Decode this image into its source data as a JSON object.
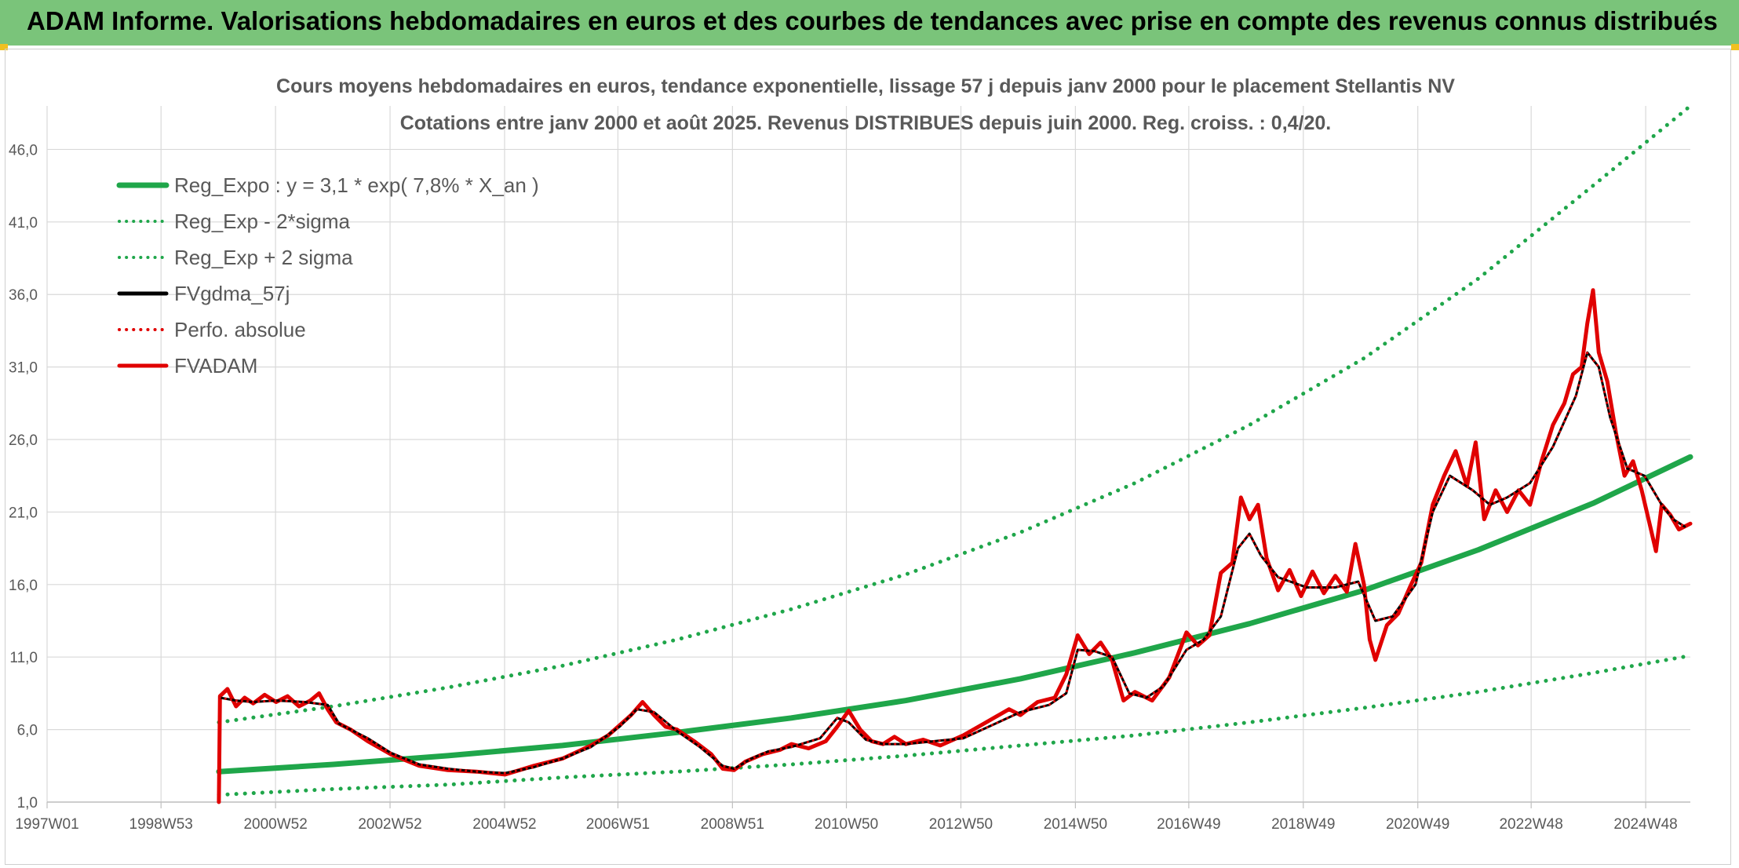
{
  "header": {
    "title": "ADAM Informe. Valorisations hebdomadaires en euros et des courbes de tendances avec prise en compte des revenus connus distribués"
  },
  "chart_data": {
    "type": "line",
    "title": "Cours moyens hebdomadaires en euros, tendance exponentielle, lissage 57 j depuis janv 2000 pour le placement Stellantis NV",
    "subtitle": "Cotations entre janv 2000 et août 2025. Revenus DISTRIBUES depuis juin 2000. Reg. croiss. : 0,4/20.",
    "xlabel": "",
    "ylabel": "",
    "x_range": [
      1997.0,
      2025.7
    ],
    "ylim": [
      1.0,
      49.0
    ],
    "y_ticks": [
      "1,0",
      "6,0",
      "11,0",
      "16,0",
      "21,0",
      "26,0",
      "31,0",
      "36,0",
      "41,0",
      "46,0"
    ],
    "y_tick_values": [
      1,
      6,
      11,
      16,
      21,
      26,
      31,
      36,
      41,
      46
    ],
    "x_ticks": [
      "1997W01",
      "1998W53",
      "2000W52",
      "2002W52",
      "2004W52",
      "2006W51",
      "2008W51",
      "2010W50",
      "2012W50",
      "2014W50",
      "2016W49",
      "2018W49",
      "2020W49",
      "2022W48",
      "2024W48"
    ],
    "x_tick_values": [
      1997.0,
      1998.99,
      2000.99,
      2002.99,
      2004.99,
      2006.97,
      2008.97,
      2010.96,
      2012.96,
      2014.96,
      2016.94,
      2018.94,
      2020.94,
      2022.92,
      2024.92
    ],
    "grid": true,
    "legend_position": "top-left",
    "series": [
      {
        "name": "Reg_Expo : y = 3,1 * exp( 7,8% *  X_an )",
        "style": "solid",
        "color": "#1fa64a",
        "x": [
          2000.0,
          2002.0,
          2004.0,
          2006.0,
          2008.0,
          2010.0,
          2012.0,
          2014.0,
          2016.0,
          2018.0,
          2020.0,
          2022.0,
          2024.0,
          2025.7
        ],
        "y": [
          3.1,
          3.6,
          4.2,
          4.9,
          5.8,
          6.8,
          8.0,
          9.5,
          11.3,
          13.3,
          15.6,
          18.4,
          21.6,
          24.8
        ]
      },
      {
        "name": "Reg_Exp - 2*sigma",
        "style": "dotted",
        "color": "#1fa64a",
        "x": [
          2000.0,
          2002.0,
          2004.0,
          2006.0,
          2008.0,
          2010.0,
          2012.0,
          2014.0,
          2016.0,
          2018.0,
          2020.0,
          2022.0,
          2024.0,
          2025.7
        ],
        "y": [
          1.5,
          1.9,
          2.2,
          2.7,
          3.1,
          3.6,
          4.2,
          4.9,
          5.6,
          6.5,
          7.5,
          8.6,
          9.9,
          11.1
        ]
      },
      {
        "name": "Reg_Exp + 2 sigma",
        "style": "dotted",
        "color": "#1fa64a",
        "x": [
          2000.0,
          2002.0,
          2004.0,
          2006.0,
          2008.0,
          2010.0,
          2012.0,
          2014.0,
          2016.0,
          2018.0,
          2020.0,
          2022.0,
          2024.0,
          2025.7
        ],
        "y": [
          6.5,
          7.6,
          8.9,
          10.4,
          12.2,
          14.3,
          16.7,
          19.6,
          23.0,
          27.0,
          31.6,
          37.1,
          43.5,
          49.0
        ]
      },
      {
        "name": "FVgdma_57j",
        "style": "solid",
        "color": "#000000",
        "x": [
          2000.02,
          2000.3,
          2000.6,
          2001.0,
          2001.5,
          2001.9,
          2002.1,
          2002.6,
          2003.0,
          2003.5,
          2004.0,
          2004.5,
          2005.0,
          2005.5,
          2006.0,
          2006.5,
          2007.0,
          2007.3,
          2007.6,
          2008.0,
          2008.4,
          2008.8,
          2009.0,
          2009.3,
          2009.6,
          2010.0,
          2010.5,
          2010.8,
          2011.0,
          2011.3,
          2011.6,
          2012.0,
          2012.5,
          2013.0,
          2013.5,
          2014.0,
          2014.5,
          2014.8,
          2015.0,
          2015.3,
          2015.6,
          2015.9,
          2016.2,
          2016.5,
          2016.9,
          2017.2,
          2017.5,
          2017.8,
          2018.0,
          2018.2,
          2018.5,
          2019.0,
          2019.5,
          2019.9,
          2020.2,
          2020.5,
          2020.9,
          2021.2,
          2021.5,
          2021.9,
          2022.2,
          2022.5,
          2022.9,
          2023.3,
          2023.7,
          2023.9,
          2024.1,
          2024.3,
          2024.6,
          2024.9,
          2025.2,
          2025.4,
          2025.6
        ],
        "y": [
          8.2,
          8.0,
          7.9,
          8.0,
          7.9,
          7.7,
          6.4,
          5.4,
          4.4,
          3.6,
          3.3,
          3.1,
          3.0,
          3.4,
          4.0,
          4.8,
          6.2,
          7.4,
          7.2,
          5.9,
          4.8,
          3.5,
          3.3,
          4.0,
          4.5,
          4.8,
          5.4,
          6.8,
          6.5,
          5.3,
          5.0,
          5.0,
          5.2,
          5.4,
          6.3,
          7.2,
          7.7,
          8.5,
          11.5,
          11.4,
          11.0,
          8.5,
          8.2,
          9.0,
          11.5,
          12.2,
          13.8,
          18.5,
          19.5,
          18.0,
          16.5,
          15.8,
          15.8,
          16.2,
          13.5,
          13.8,
          16.0,
          21.0,
          23.5,
          22.5,
          21.5,
          22.0,
          23.0,
          25.5,
          29.0,
          32.0,
          31.0,
          27.5,
          24.0,
          23.5,
          21.5,
          20.5,
          20.0
        ]
      },
      {
        "name": "Perfo. absolue",
        "style": "dotted",
        "color": "#e00000",
        "x": [
          2000.02,
          2000.3,
          2000.6,
          2001.0,
          2001.5,
          2001.9,
          2002.1,
          2002.6,
          2003.0,
          2003.5,
          2004.0,
          2004.5,
          2005.0,
          2005.5,
          2006.0,
          2006.5,
          2007.0,
          2007.3,
          2007.6,
          2008.0,
          2008.4,
          2008.8,
          2009.0,
          2009.3,
          2009.6,
          2010.0,
          2010.5,
          2010.8,
          2011.0,
          2011.3,
          2011.6,
          2012.0,
          2012.5,
          2013.0,
          2013.5,
          2014.0,
          2014.5,
          2014.8,
          2015.0,
          2015.3,
          2015.6,
          2015.9,
          2016.2,
          2016.5,
          2016.9,
          2017.2,
          2017.5,
          2017.8,
          2018.0,
          2018.2,
          2018.5,
          2019.0,
          2019.5,
          2019.9,
          2020.2,
          2020.5,
          2020.9,
          2021.2,
          2021.5,
          2021.9,
          2022.2,
          2022.5,
          2022.9,
          2023.3,
          2023.7,
          2023.9,
          2024.1,
          2024.3,
          2024.6,
          2024.9,
          2025.2,
          2025.4,
          2025.6
        ],
        "y": [
          8.2,
          8.0,
          7.9,
          8.0,
          7.9,
          7.7,
          6.4,
          5.4,
          4.4,
          3.6,
          3.3,
          3.1,
          3.0,
          3.4,
          4.0,
          4.8,
          6.2,
          7.4,
          7.2,
          5.9,
          4.8,
          3.5,
          3.3,
          4.0,
          4.5,
          4.8,
          5.4,
          6.8,
          6.5,
          5.3,
          5.0,
          5.0,
          5.2,
          5.4,
          6.3,
          7.2,
          7.7,
          8.5,
          11.5,
          11.4,
          11.0,
          8.5,
          8.2,
          9.0,
          11.5,
          12.2,
          13.8,
          18.5,
          19.5,
          18.0,
          16.5,
          15.8,
          15.8,
          16.2,
          13.5,
          13.8,
          16.0,
          21.0,
          23.5,
          22.5,
          21.5,
          22.0,
          23.0,
          25.5,
          29.0,
          32.0,
          31.0,
          27.5,
          24.0,
          23.5,
          21.5,
          20.5,
          20.0
        ]
      },
      {
        "name": "FVADAM",
        "style": "solid",
        "color": "#e00000",
        "x": [
          2000.0,
          2000.02,
          2000.15,
          2000.3,
          2000.45,
          2000.6,
          2000.8,
          2001.0,
          2001.2,
          2001.4,
          2001.6,
          2001.75,
          2001.9,
          2002.05,
          2002.3,
          2002.6,
          2003.0,
          2003.5,
          2004.0,
          2004.5,
          2005.0,
          2005.5,
          2006.0,
          2006.5,
          2006.8,
          2007.0,
          2007.2,
          2007.4,
          2007.6,
          2007.8,
          2008.0,
          2008.3,
          2008.6,
          2008.8,
          2009.0,
          2009.2,
          2009.5,
          2009.8,
          2010.0,
          2010.3,
          2010.6,
          2010.8,
          2011.0,
          2011.2,
          2011.4,
          2011.6,
          2011.8,
          2012.0,
          2012.3,
          2012.6,
          2013.0,
          2013.4,
          2013.8,
          2014.0,
          2014.3,
          2014.6,
          2014.8,
          2015.0,
          2015.2,
          2015.4,
          2015.6,
          2015.8,
          2016.0,
          2016.3,
          2016.6,
          2016.9,
          2017.1,
          2017.3,
          2017.5,
          2017.7,
          2017.85,
          2018.0,
          2018.15,
          2018.3,
          2018.5,
          2018.7,
          2018.9,
          2019.1,
          2019.3,
          2019.5,
          2019.7,
          2019.85,
          2020.0,
          2020.1,
          2020.2,
          2020.4,
          2020.6,
          2020.8,
          2021.0,
          2021.2,
          2021.4,
          2021.6,
          2021.8,
          2021.95,
          2022.1,
          2022.3,
          2022.5,
          2022.7,
          2022.9,
          2023.1,
          2023.3,
          2023.5,
          2023.65,
          2023.8,
          2023.9,
          2024.0,
          2024.1,
          2024.25,
          2024.4,
          2024.55,
          2024.7,
          2024.85,
          2025.0,
          2025.1,
          2025.2,
          2025.35,
          2025.5,
          2025.7
        ],
        "y": [
          1.0,
          8.3,
          8.8,
          7.6,
          8.2,
          7.8,
          8.4,
          7.9,
          8.3,
          7.6,
          8.0,
          8.5,
          7.4,
          6.5,
          6.0,
          5.2,
          4.3,
          3.5,
          3.2,
          3.1,
          2.9,
          3.5,
          4.0,
          4.9,
          5.6,
          6.3,
          7.0,
          7.9,
          7.0,
          6.2,
          6.0,
          5.2,
          4.3,
          3.3,
          3.2,
          3.8,
          4.3,
          4.6,
          5.0,
          4.7,
          5.2,
          6.2,
          7.3,
          6.0,
          5.2,
          5.0,
          5.5,
          5.0,
          5.3,
          4.9,
          5.6,
          6.5,
          7.4,
          7.0,
          7.9,
          8.2,
          9.8,
          12.5,
          11.2,
          12.0,
          10.8,
          8.0,
          8.6,
          8.0,
          9.6,
          12.7,
          11.8,
          12.5,
          16.8,
          17.5,
          22.0,
          20.5,
          21.5,
          17.8,
          15.6,
          17.0,
          15.2,
          16.9,
          15.4,
          16.6,
          15.5,
          18.8,
          16.0,
          12.2,
          10.8,
          13.2,
          14.0,
          15.8,
          17.5,
          21.5,
          23.5,
          25.2,
          22.8,
          25.8,
          20.5,
          22.5,
          21.0,
          22.5,
          21.5,
          24.5,
          27.0,
          28.5,
          30.5,
          31.0,
          34.0,
          36.3,
          32.0,
          30.0,
          26.5,
          23.5,
          24.5,
          22.5,
          20.0,
          18.3,
          21.5,
          20.8,
          19.8,
          20.2
        ]
      }
    ]
  }
}
